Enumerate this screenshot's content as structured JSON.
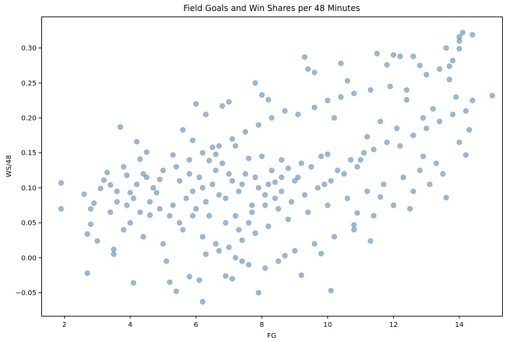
{
  "chart_data": {
    "type": "scatter",
    "title": "Field Goals and Win Shares per 48 Minutes",
    "xlabel": "FG",
    "ylabel": "WS/48",
    "xlim": [
      1.3,
      15.3
    ],
    "ylim": [
      -0.083,
      0.345
    ],
    "x_ticks": [
      2,
      4,
      6,
      8,
      10,
      12,
      14
    ],
    "x_tick_labels": [
      "2",
      "4",
      "6",
      "8",
      "10",
      "12",
      "14"
    ],
    "y_ticks": [
      -0.05,
      0.0,
      0.05,
      0.1,
      0.15,
      0.2,
      0.25,
      0.3
    ],
    "y_tick_labels": [
      "−0.05",
      "0.00",
      "0.05",
      "0.10",
      "0.15",
      "0.20",
      "0.25",
      "0.30"
    ],
    "grid": false,
    "legend": "none",
    "marker_color": "#4682b4",
    "marker_opacity": 0.55,
    "series": [
      {
        "points": [
          [
            1.9,
            0.107
          ],
          [
            1.9,
            0.07
          ],
          [
            2.6,
            0.091
          ],
          [
            2.7,
            -0.022
          ],
          [
            2.7,
            0.034
          ],
          [
            2.8,
            0.048
          ],
          [
            2.8,
            0.07
          ],
          [
            2.9,
            0.078
          ],
          [
            3.0,
            0.024
          ],
          [
            3.1,
            0.099
          ],
          [
            3.2,
            0.111
          ],
          [
            3.3,
            0.122
          ],
          [
            3.4,
            0.104
          ],
          [
            3.4,
            0.065
          ],
          [
            3.5,
            0.012
          ],
          [
            3.5,
            0.005
          ],
          [
            3.6,
            0.08
          ],
          [
            3.7,
            0.187
          ],
          [
            3.8,
            0.13
          ],
          [
            3.9,
            0.118
          ],
          [
            4.0,
            0.093
          ],
          [
            4.1,
            -0.036
          ],
          [
            4.2,
            0.166
          ],
          [
            4.3,
            0.141
          ],
          [
            4.4,
            0.12
          ],
          [
            4.5,
            0.151
          ],
          [
            4.6,
            0.061
          ],
          [
            4.8,
            0.093
          ],
          [
            4.9,
            0.112
          ],
          [
            5.1,
            -0.005
          ],
          [
            5.2,
            -0.035
          ],
          [
            5.3,
            0.147
          ],
          [
            5.4,
            -0.048
          ],
          [
            5.6,
            0.183
          ],
          [
            5.8,
            -0.027
          ],
          [
            5.9,
            0.168
          ],
          [
            6.0,
            0.22
          ],
          [
            6.1,
            -0.032
          ],
          [
            6.2,
            -0.063
          ],
          [
            6.3,
            0.205
          ],
          [
            6.4,
            0.139
          ],
          [
            6.5,
            0.158
          ],
          [
            6.6,
            0.148
          ],
          [
            6.8,
            0.217
          ],
          [
            6.9,
            -0.026
          ],
          [
            7.0,
            0.223
          ],
          [
            7.1,
            -0.03
          ],
          [
            7.2,
            0.16
          ],
          [
            7.4,
            -0.005
          ],
          [
            7.6,
            0.142
          ],
          [
            7.8,
            0.25
          ],
          [
            7.9,
            -0.05
          ],
          [
            8.0,
            0.233
          ],
          [
            8.2,
            0.226
          ],
          [
            8.4,
            0.108
          ],
          [
            8.6,
            0.095
          ],
          [
            8.7,
            0.003
          ],
          [
            8.8,
            0.128
          ],
          [
            9.0,
            0.11
          ],
          [
            9.2,
            -0.025
          ],
          [
            9.3,
            0.287
          ],
          [
            9.4,
            0.27
          ],
          [
            9.6,
            0.265
          ],
          [
            9.8,
            0.006
          ],
          [
            10.0,
            0.148
          ],
          [
            10.1,
            -0.047
          ],
          [
            10.2,
            0.2
          ],
          [
            10.4,
            0.278
          ],
          [
            10.6,
            0.253
          ],
          [
            10.8,
            0.047
          ],
          [
            11.0,
            0.14
          ],
          [
            11.2,
            0.173
          ],
          [
            11.5,
            0.292
          ],
          [
            11.6,
            0.087
          ],
          [
            11.8,
            0.276
          ],
          [
            12.0,
            0.29
          ],
          [
            12.2,
            0.288
          ],
          [
            12.4,
            0.226
          ],
          [
            12.6,
            0.288
          ],
          [
            12.8,
            0.275
          ],
          [
            13.0,
            0.262
          ],
          [
            13.2,
            0.213
          ],
          [
            13.4,
            0.27
          ],
          [
            13.6,
            0.3
          ],
          [
            13.7,
            0.274
          ],
          [
            13.8,
            0.282
          ],
          [
            14.0,
            0.316
          ],
          [
            14.0,
            0.31
          ],
          [
            14.1,
            0.322
          ],
          [
            14.2,
            0.147
          ],
          [
            14.3,
            0.183
          ],
          [
            14.4,
            0.319
          ],
          [
            14.0,
            0.299
          ],
          [
            15.0,
            0.232
          ],
          [
            13.6,
            0.086
          ],
          [
            13.7,
            0.255
          ],
          [
            12.9,
            0.145
          ],
          [
            11.3,
            0.024
          ],
          [
            10.9,
            0.064
          ],
          [
            12.5,
            0.07
          ],
          [
            6.7,
            0.09
          ],
          [
            6.9,
            0.085
          ],
          [
            7.1,
            0.11
          ],
          [
            7.3,
            0.095
          ],
          [
            7.5,
            0.12
          ],
          [
            7.7,
            0.075
          ],
          [
            6.5,
            0.105
          ],
          [
            6.3,
            0.08
          ],
          [
            6.1,
            0.115
          ],
          [
            7.9,
            0.1
          ],
          [
            8.1,
            0.09
          ],
          [
            8.3,
            0.125
          ],
          [
            8.5,
            0.07
          ],
          [
            5.9,
            0.095
          ],
          [
            5.7,
            0.085
          ],
          [
            5.5,
            0.11
          ],
          [
            5.3,
            0.075
          ],
          [
            6.8,
            0.135
          ],
          [
            7.2,
            0.06
          ],
          [
            7.6,
            0.05
          ],
          [
            8.0,
            0.145
          ],
          [
            8.6,
            0.14
          ],
          [
            9.1,
            0.115
          ],
          [
            9.5,
            0.13
          ],
          [
            9.9,
            0.105
          ],
          [
            10.3,
            0.125
          ],
          [
            10.7,
            0.14
          ],
          [
            11.1,
            0.15
          ],
          [
            11.4,
            0.155
          ],
          [
            11.8,
            0.165
          ],
          [
            12.2,
            0.16
          ],
          [
            12.6,
            0.175
          ],
          [
            13.0,
            0.185
          ],
          [
            13.4,
            0.195
          ],
          [
            13.8,
            0.205
          ],
          [
            14.2,
            0.21
          ],
          [
            4.3,
            0.065
          ],
          [
            4.6,
            0.08
          ],
          [
            4.9,
            0.07
          ],
          [
            5.2,
            0.06
          ],
          [
            4.0,
            0.05
          ],
          [
            3.8,
            0.04
          ],
          [
            4.4,
            0.03
          ],
          [
            5.0,
            0.02
          ],
          [
            5.6,
            0.04
          ],
          [
            6.2,
            0.03
          ],
          [
            6.6,
            0.02
          ],
          [
            7.0,
            0.015
          ],
          [
            7.4,
            0.025
          ],
          [
            7.8,
            0.035
          ],
          [
            8.2,
            0.045
          ],
          [
            8.8,
            0.055
          ],
          [
            9.4,
            0.065
          ],
          [
            10.0,
            0.075
          ],
          [
            10.6,
            0.085
          ],
          [
            11.2,
            0.095
          ],
          [
            11.7,
            0.105
          ],
          [
            12.3,
            0.115
          ],
          [
            12.8,
            0.125
          ],
          [
            13.3,
            0.135
          ],
          [
            6.0,
            0.07
          ],
          [
            6.4,
            0.06
          ],
          [
            6.9,
            0.05
          ],
          [
            7.3,
            0.04
          ],
          [
            7.7,
            0.065
          ],
          [
            8.1,
            0.075
          ],
          [
            8.4,
            0.085
          ],
          [
            8.9,
            0.08
          ],
          [
            9.3,
            0.09
          ],
          [
            9.7,
            0.1
          ],
          [
            10.1,
            0.11
          ],
          [
            10.5,
            0.12
          ],
          [
            10.9,
            0.13
          ],
          [
            5.4,
            0.13
          ],
          [
            5.8,
            0.14
          ],
          [
            6.2,
            0.15
          ],
          [
            6.7,
            0.16
          ],
          [
            7.1,
            0.17
          ],
          [
            7.5,
            0.18
          ],
          [
            7.9,
            0.19
          ],
          [
            8.3,
            0.2
          ],
          [
            8.7,
            0.21
          ],
          [
            9.1,
            0.205
          ],
          [
            9.6,
            0.215
          ],
          [
            10.0,
            0.225
          ],
          [
            10.4,
            0.23
          ],
          [
            10.8,
            0.235
          ],
          [
            11.3,
            0.24
          ],
          [
            11.9,
            0.245
          ],
          [
            12.4,
            0.24
          ],
          [
            4.7,
            0.1
          ],
          [
            5.0,
            0.125
          ],
          [
            4.2,
            0.105
          ],
          [
            3.6,
            0.095
          ],
          [
            3.9,
            0.075
          ],
          [
            4.1,
            0.085
          ],
          [
            4.5,
            0.115
          ],
          [
            5.5,
            0.05
          ],
          [
            5.9,
            0.06
          ],
          [
            6.3,
            0.005
          ],
          [
            6.7,
            0.01
          ],
          [
            7.2,
            0.0
          ],
          [
            7.6,
            -0.01
          ],
          [
            8.1,
            -0.015
          ],
          [
            8.5,
            -0.005
          ],
          [
            9.0,
            0.01
          ],
          [
            9.6,
            0.02
          ],
          [
            10.2,
            0.03
          ],
          [
            10.8,
            0.04
          ],
          [
            11.4,
            0.06
          ],
          [
            12.0,
            0.075
          ],
          [
            12.6,
            0.095
          ],
          [
            13.1,
            0.105
          ],
          [
            13.5,
            0.12
          ],
          [
            14.0,
            0.165
          ],
          [
            14.4,
            0.225
          ],
          [
            13.9,
            0.23
          ],
          [
            12.9,
            0.2
          ],
          [
            12.1,
            0.185
          ],
          [
            11.6,
            0.195
          ],
          [
            7.0,
            0.12
          ],
          [
            7.4,
            0.105
          ],
          [
            7.8,
            0.115
          ],
          [
            8.2,
            0.105
          ],
          [
            8.6,
            0.115
          ],
          [
            6.6,
            0.125
          ],
          [
            6.2,
            0.1
          ],
          [
            5.8,
            0.12
          ],
          [
            9.2,
            0.135
          ],
          [
            9.8,
            0.145
          ]
        ]
      }
    ]
  }
}
